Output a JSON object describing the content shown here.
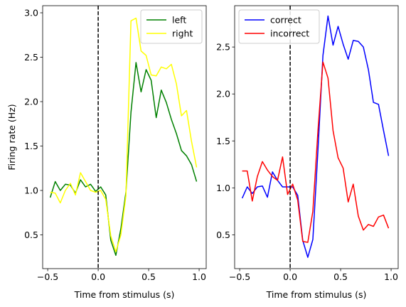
{
  "chart_data": [
    {
      "type": "line",
      "xlabel": "Time from stimulus (s)",
      "ylabel": "Firing rate (Hz)",
      "xlim": [
        -0.55,
        1.07
      ],
      "ylim": [
        0.12,
        3.08
      ],
      "xticks": [
        -0.5,
        0.0,
        0.5,
        1.0
      ],
      "xtick_labels": [
        "−0.5",
        "0.0",
        "0.5",
        "1.0"
      ],
      "yticks": [
        0.5,
        1.0,
        1.5,
        2.0,
        2.5,
        3.0
      ],
      "ytick_labels": [
        "0.5",
        "1.0",
        "1.5",
        "2.0",
        "2.5",
        "3.0"
      ],
      "vline_x": 0,
      "legend_loc": "upper right",
      "x": [
        -0.475,
        -0.425,
        -0.375,
        -0.325,
        -0.275,
        -0.225,
        -0.175,
        -0.125,
        -0.075,
        -0.025,
        0.025,
        0.075,
        0.125,
        0.175,
        0.225,
        0.275,
        0.325,
        0.375,
        0.425,
        0.475,
        0.525,
        0.575,
        0.625,
        0.675,
        0.725,
        0.775,
        0.825,
        0.875,
        0.925,
        0.975
      ],
      "series": [
        {
          "name": "left",
          "color": "#008000",
          "values": [
            0.92,
            1.1,
            1.0,
            1.07,
            1.06,
            0.97,
            1.12,
            1.04,
            1.07,
            0.99,
            1.04,
            0.95,
            0.44,
            0.27,
            0.57,
            0.98,
            1.88,
            2.44,
            2.11,
            2.36,
            2.24,
            1.82,
            2.13,
            1.99,
            1.8,
            1.64,
            1.45,
            1.39,
            1.29,
            1.1
          ]
        },
        {
          "name": "right",
          "color": "#ffff00",
          "values": [
            0.98,
            0.97,
            0.86,
            1.0,
            1.08,
            0.95,
            1.2,
            1.1,
            1.0,
            0.98,
            1.0,
            0.9,
            0.49,
            0.31,
            0.5,
            0.94,
            2.91,
            2.94,
            2.57,
            2.52,
            2.3,
            2.29,
            2.39,
            2.37,
            2.42,
            2.2,
            1.84,
            1.9,
            1.55,
            1.26
          ]
        }
      ]
    },
    {
      "type": "line",
      "xlabel": "Time from stimulus (s)",
      "ylabel": "",
      "xlim": [
        -0.55,
        1.07
      ],
      "ylim": [
        0.14,
        2.94
      ],
      "xticks": [
        -0.5,
        0.0,
        0.5,
        1.0
      ],
      "xtick_labels": [
        "−0.5",
        "0.0",
        "0.5",
        "1.0"
      ],
      "yticks": [
        0.5,
        1.0,
        1.5,
        2.0,
        2.5
      ],
      "ytick_labels": [
        "0.5",
        "1.0",
        "1.5",
        "2.0",
        "2.5"
      ],
      "vline_x": 0,
      "legend_loc": "upper left",
      "x": [
        -0.475,
        -0.425,
        -0.375,
        -0.325,
        -0.275,
        -0.225,
        -0.175,
        -0.125,
        -0.075,
        -0.025,
        0.025,
        0.075,
        0.125,
        0.175,
        0.225,
        0.275,
        0.325,
        0.375,
        0.425,
        0.475,
        0.525,
        0.575,
        0.625,
        0.675,
        0.725,
        0.775,
        0.825,
        0.875,
        0.925,
        0.975
      ],
      "series": [
        {
          "name": "correct",
          "color": "#0000ff",
          "values": [
            0.89,
            1.01,
            0.94,
            1.01,
            1.02,
            0.9,
            1.17,
            1.08,
            1.01,
            1.01,
            1.01,
            0.92,
            0.44,
            0.26,
            0.45,
            1.39,
            2.41,
            2.83,
            2.52,
            2.72,
            2.53,
            2.37,
            2.57,
            2.56,
            2.5,
            2.26,
            1.91,
            1.89,
            1.61,
            1.34
          ]
        },
        {
          "name": "incorrect",
          "color": "#ff0000",
          "values": [
            1.18,
            1.18,
            0.86,
            1.12,
            1.28,
            1.19,
            1.12,
            1.08,
            1.33,
            0.93,
            1.04,
            0.87,
            0.43,
            0.42,
            0.75,
            1.6,
            2.34,
            2.17,
            1.61,
            1.32,
            1.21,
            0.85,
            1.04,
            0.7,
            0.55,
            0.61,
            0.59,
            0.69,
            0.71,
            0.57
          ]
        }
      ]
    }
  ]
}
